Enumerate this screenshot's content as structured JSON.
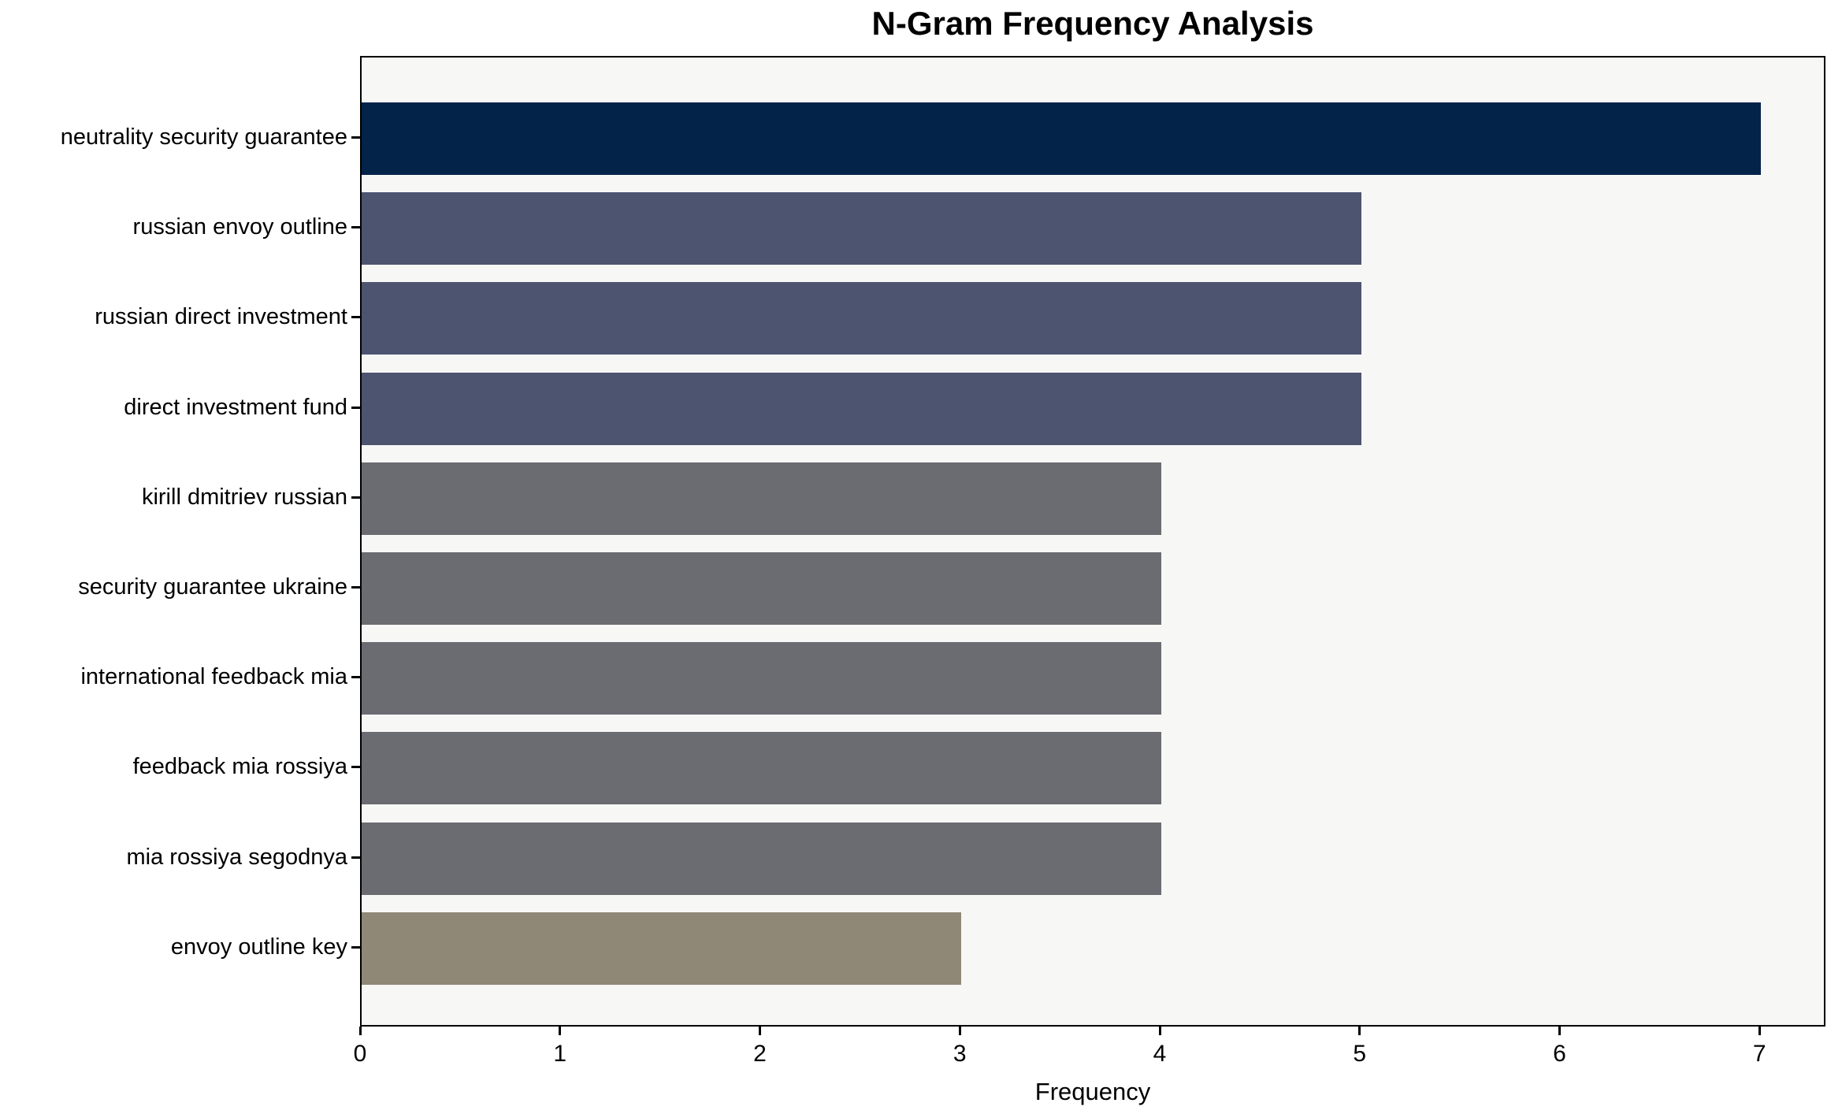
{
  "chart_data": {
    "type": "bar",
    "orientation": "horizontal",
    "title": "N-Gram Frequency Analysis",
    "xlabel": "Frequency",
    "ylabel": "",
    "categories": [
      "neutrality security guarantee",
      "russian envoy outline",
      "russian direct investment",
      "direct investment fund",
      "kirill dmitriev russian",
      "security guarantee ukraine",
      "international feedback mia",
      "feedback mia rossiya",
      "mia rossiya segodnya",
      "envoy outline key"
    ],
    "values": [
      7,
      5,
      5,
      5,
      4,
      4,
      4,
      4,
      4,
      3
    ],
    "bar_colors": [
      "#032349",
      "#4d5470",
      "#4d5470",
      "#4d5470",
      "#6a6c71",
      "#6a6c71",
      "#6a6c71",
      "#6a6c71",
      "#6a6c71",
      "#8f8877"
    ],
    "x_tick_values": [
      0,
      1,
      2,
      3,
      4,
      5,
      6,
      7
    ],
    "x_tick_labels": [
      "0",
      "1",
      "2",
      "3",
      "4",
      "5",
      "6",
      "7"
    ],
    "xlim": [
      0,
      7.33
    ],
    "grid": false,
    "legend_position": "none",
    "colors": {
      "figure_bg": "#ffffff",
      "plot_bg": "#f7f7f6",
      "axis_line": "#000000",
      "text": "#000000"
    }
  }
}
